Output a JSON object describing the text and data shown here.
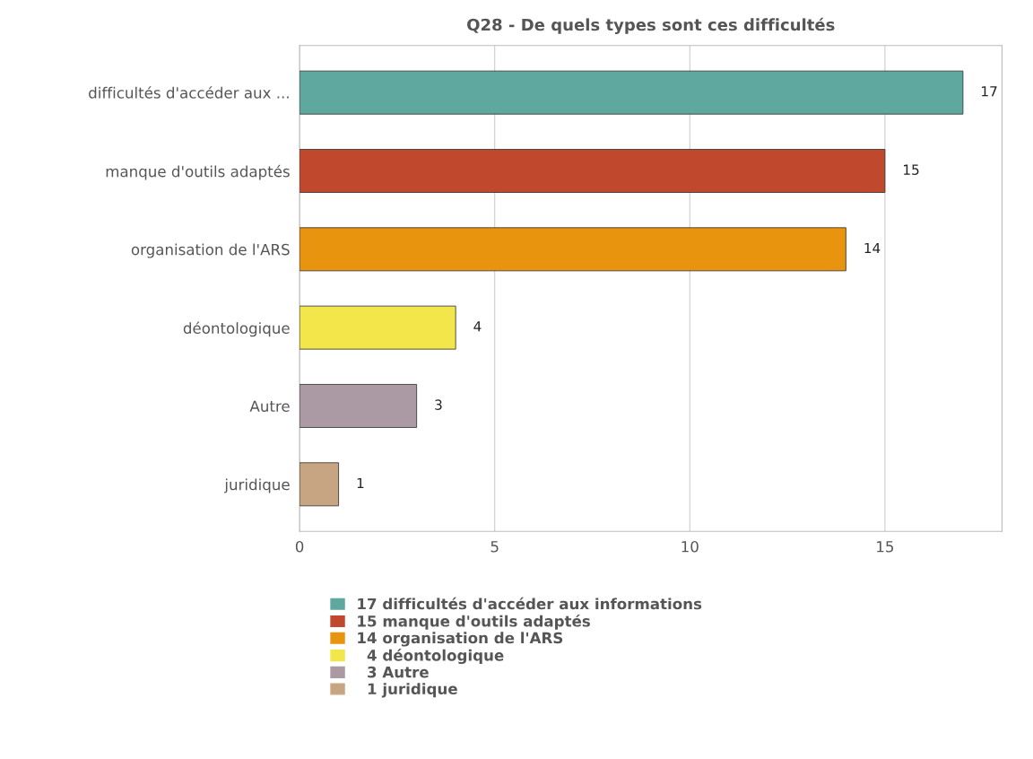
{
  "chart_data": {
    "type": "bar",
    "orientation": "horizontal",
    "title": "Q28 - De quels types sont ces difficultés",
    "categories": [
      "difficultés d'accéder aux ...",
      "manque d'outils adaptés",
      "organisation de l'ARS",
      "déontologique",
      "Autre",
      "juridique"
    ],
    "series": [
      {
        "name": "17 difficultés d'accéder aux informations",
        "color": "#5fa8a0",
        "values": [
          17,
          null,
          null,
          null,
          null,
          null
        ]
      },
      {
        "name": "15 manque d'outils adaptés",
        "color": "#c0492d",
        "values": [
          null,
          15,
          null,
          null,
          null,
          null
        ]
      },
      {
        "name": "14 organisation de l'ARS",
        "color": "#e8940f",
        "values": [
          null,
          null,
          14,
          null,
          null,
          null
        ]
      },
      {
        "name": "  4 déontologique",
        "color": "#f2e64a",
        "values": [
          null,
          null,
          null,
          4,
          null,
          null
        ]
      },
      {
        "name": "  3 Autre",
        "color": "#ab9aa4",
        "values": [
          null,
          null,
          null,
          null,
          3,
          null
        ]
      },
      {
        "name": "  1 juridique",
        "color": "#c8a582",
        "values": [
          null,
          null,
          null,
          null,
          null,
          1
        ]
      }
    ],
    "xlim": [
      0,
      18
    ],
    "xticks": [
      0,
      5,
      10,
      15
    ],
    "grid": "x",
    "legend": "bottom",
    "data_labels": true
  }
}
